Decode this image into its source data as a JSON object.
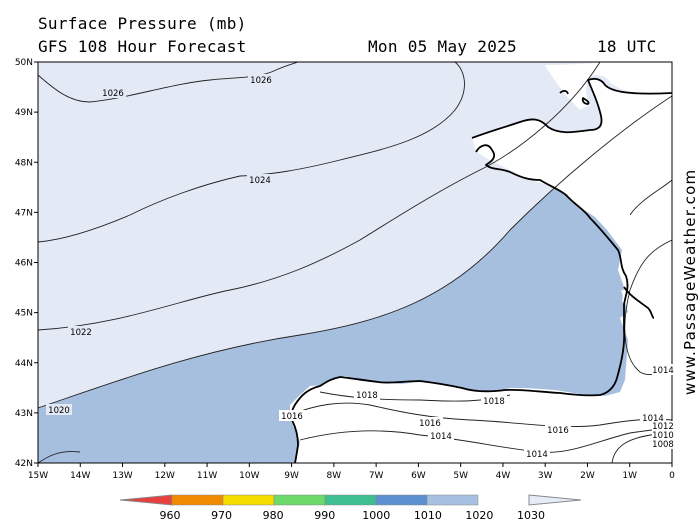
{
  "header": {
    "title": "Surface Pressure (mb)",
    "subtitle": "GFS 108 Hour Forecast",
    "date": "Mon 05 May 2025",
    "time": "18 UTC"
  },
  "credit": "www.PassageWeather.com",
  "axes": {
    "lat_labels": [
      "50N",
      "49N",
      "48N",
      "47N",
      "46N",
      "45N",
      "44N",
      "43N",
      "42N"
    ],
    "lon_labels": [
      "15W",
      "14W",
      "13W",
      "12W",
      "11W",
      "10W",
      "9W",
      "8W",
      "7W",
      "6W",
      "5W",
      "4W",
      "3W",
      "2W",
      "1W",
      "0"
    ]
  },
  "isobar_labels": [
    {
      "text": "1026",
      "id": "a"
    },
    {
      "text": "1026",
      "id": "b"
    },
    {
      "text": "1024",
      "id": "c"
    },
    {
      "text": "1022",
      "id": "d"
    },
    {
      "text": "1020",
      "id": "e"
    },
    {
      "text": "1018",
      "id": "f"
    },
    {
      "text": "1018",
      "id": "g"
    },
    {
      "text": "1016",
      "id": "h"
    },
    {
      "text": "1016",
      "id": "i"
    },
    {
      "text": "1016",
      "id": "j"
    },
    {
      "text": "1014",
      "id": "k"
    },
    {
      "text": "1014",
      "id": "l"
    },
    {
      "text": "1014",
      "id": "m"
    },
    {
      "text": "1014",
      "id": "n"
    },
    {
      "text": "1012",
      "id": "o"
    },
    {
      "text": "1010",
      "id": "p"
    },
    {
      "text": "1008",
      "id": "q"
    }
  ],
  "legend": {
    "ticks": [
      "960",
      "970",
      "980",
      "990",
      "1000",
      "1010",
      "1020",
      "1030"
    ],
    "colors": [
      "#e8403f",
      "#f08a00",
      "#f5dd00",
      "#6cd96a",
      "#3fbf8f",
      "#5b8fd0",
      "#a7bfe0",
      "#e6ecf7"
    ]
  },
  "colors": {
    "land": "#ffffff",
    "sea_light": "#e3e9f5",
    "sea_mid": "#a7bfdf",
    "sea_dark": "#5f86c4"
  }
}
